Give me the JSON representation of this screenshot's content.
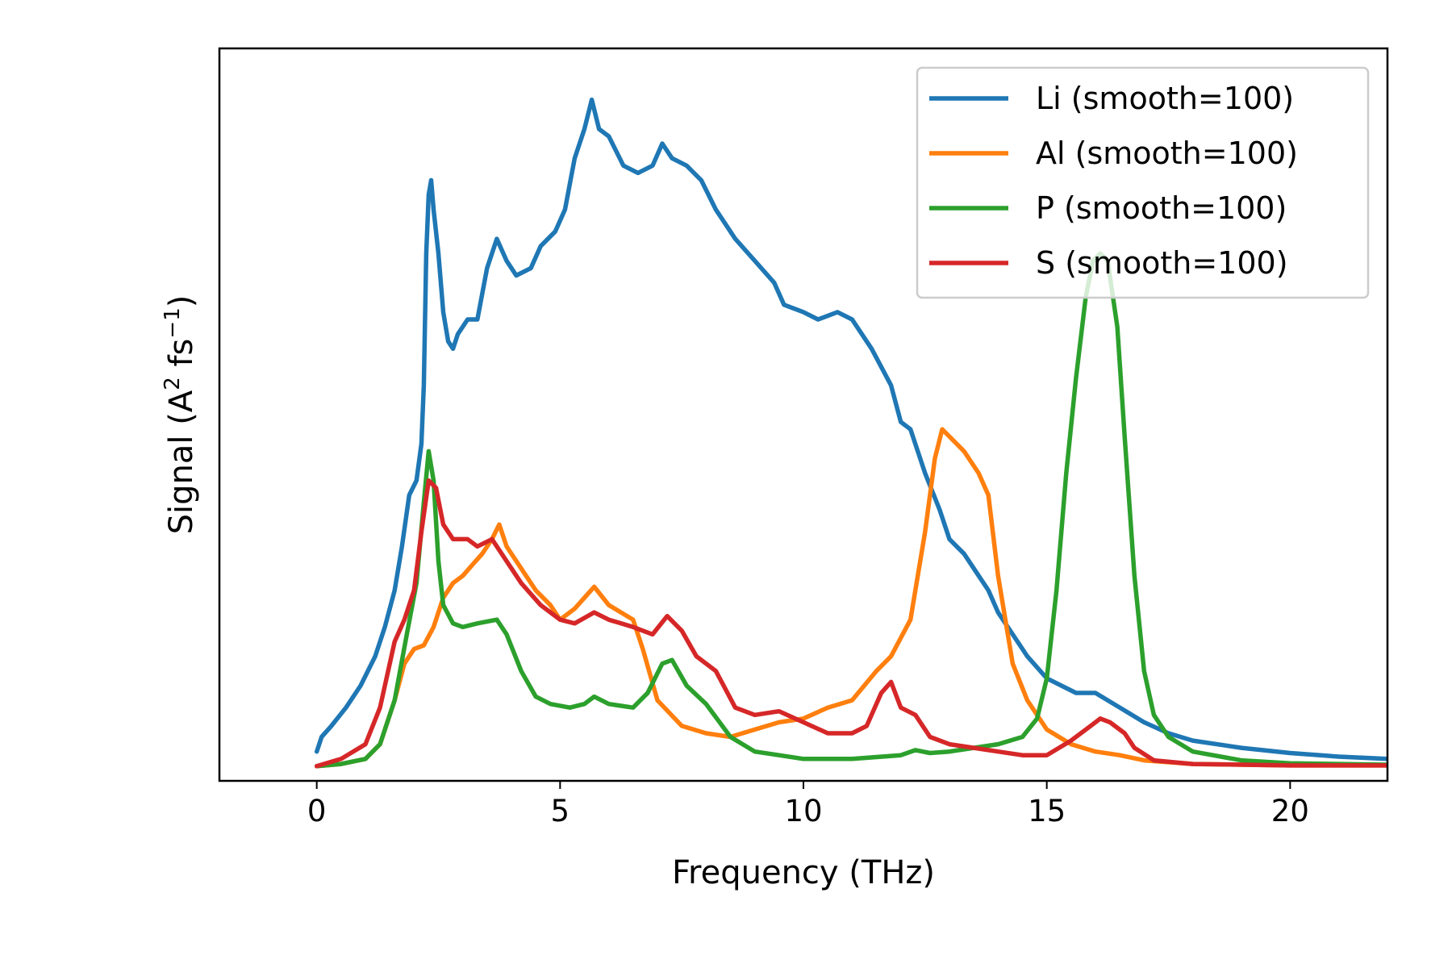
{
  "chart_data": {
    "type": "line",
    "xlabel": "Frequency (THz)",
    "ylabel_parts": {
      "base": "Signal (A",
      "sup1": "2",
      "mid": " fs",
      "sup2": "−1",
      "end": ")"
    },
    "xlim": [
      -2,
      22
    ],
    "ylim": [
      -0.02,
      0.98
    ],
    "xticks": [
      0,
      5,
      10,
      15,
      20
    ],
    "yticks_shown": false,
    "grid": false,
    "legend_position": "top-right",
    "series": [
      {
        "name": "Li (smooth=100)",
        "color": "#1f77b4",
        "points": [
          [
            0,
            0.02
          ],
          [
            0.1,
            0.04
          ],
          [
            0.3,
            0.055
          ],
          [
            0.6,
            0.08
          ],
          [
            0.9,
            0.11
          ],
          [
            1.2,
            0.15
          ],
          [
            1.4,
            0.19
          ],
          [
            1.6,
            0.24
          ],
          [
            1.75,
            0.3
          ],
          [
            1.9,
            0.37
          ],
          [
            2.05,
            0.39
          ],
          [
            2.15,
            0.44
          ],
          [
            2.2,
            0.52
          ],
          [
            2.25,
            0.7
          ],
          [
            2.3,
            0.78
          ],
          [
            2.35,
            0.8
          ],
          [
            2.4,
            0.76
          ],
          [
            2.5,
            0.7
          ],
          [
            2.6,
            0.62
          ],
          [
            2.7,
            0.58
          ],
          [
            2.8,
            0.57
          ],
          [
            2.9,
            0.59
          ],
          [
            3.1,
            0.61
          ],
          [
            3.3,
            0.61
          ],
          [
            3.5,
            0.68
          ],
          [
            3.7,
            0.72
          ],
          [
            3.9,
            0.69
          ],
          [
            4.1,
            0.67
          ],
          [
            4.4,
            0.68
          ],
          [
            4.6,
            0.71
          ],
          [
            4.9,
            0.73
          ],
          [
            5.1,
            0.76
          ],
          [
            5.3,
            0.83
          ],
          [
            5.5,
            0.87
          ],
          [
            5.65,
            0.91
          ],
          [
            5.8,
            0.87
          ],
          [
            6.0,
            0.86
          ],
          [
            6.3,
            0.82
          ],
          [
            6.6,
            0.81
          ],
          [
            6.9,
            0.82
          ],
          [
            7.1,
            0.85
          ],
          [
            7.3,
            0.83
          ],
          [
            7.6,
            0.82
          ],
          [
            7.9,
            0.8
          ],
          [
            8.2,
            0.76
          ],
          [
            8.6,
            0.72
          ],
          [
            9.0,
            0.69
          ],
          [
            9.4,
            0.66
          ],
          [
            9.6,
            0.63
          ],
          [
            10.0,
            0.62
          ],
          [
            10.3,
            0.61
          ],
          [
            10.7,
            0.62
          ],
          [
            11.0,
            0.61
          ],
          [
            11.4,
            0.57
          ],
          [
            11.8,
            0.52
          ],
          [
            12.0,
            0.47
          ],
          [
            12.2,
            0.46
          ],
          [
            12.5,
            0.4
          ],
          [
            12.8,
            0.35
          ],
          [
            13.0,
            0.31
          ],
          [
            13.3,
            0.29
          ],
          [
            13.5,
            0.27
          ],
          [
            13.8,
            0.24
          ],
          [
            14.0,
            0.21
          ],
          [
            14.3,
            0.18
          ],
          [
            14.6,
            0.15
          ],
          [
            15.0,
            0.12
          ],
          [
            15.3,
            0.11
          ],
          [
            15.6,
            0.1
          ],
          [
            16.0,
            0.1
          ],
          [
            16.5,
            0.08
          ],
          [
            17.0,
            0.06
          ],
          [
            17.5,
            0.045
          ],
          [
            18.0,
            0.035
          ],
          [
            19.0,
            0.025
          ],
          [
            20.0,
            0.018
          ],
          [
            21.0,
            0.013
          ],
          [
            22.0,
            0.01
          ]
        ]
      },
      {
        "name": "Al (smooth=100)",
        "color": "#ff7f0e",
        "points": [
          [
            0,
            0.0
          ],
          [
            0.5,
            0.003
          ],
          [
            1.0,
            0.01
          ],
          [
            1.3,
            0.03
          ],
          [
            1.6,
            0.09
          ],
          [
            1.8,
            0.14
          ],
          [
            2.0,
            0.16
          ],
          [
            2.2,
            0.165
          ],
          [
            2.4,
            0.19
          ],
          [
            2.6,
            0.23
          ],
          [
            2.8,
            0.25
          ],
          [
            3.0,
            0.26
          ],
          [
            3.2,
            0.275
          ],
          [
            3.4,
            0.29
          ],
          [
            3.6,
            0.31
          ],
          [
            3.75,
            0.33
          ],
          [
            3.9,
            0.3
          ],
          [
            4.2,
            0.27
          ],
          [
            4.5,
            0.24
          ],
          [
            4.8,
            0.22
          ],
          [
            5.0,
            0.2
          ],
          [
            5.3,
            0.215
          ],
          [
            5.5,
            0.23
          ],
          [
            5.7,
            0.245
          ],
          [
            6.0,
            0.22
          ],
          [
            6.5,
            0.2
          ],
          [
            6.7,
            0.16
          ],
          [
            7.0,
            0.09
          ],
          [
            7.5,
            0.055
          ],
          [
            8.0,
            0.045
          ],
          [
            8.5,
            0.04
          ],
          [
            9.0,
            0.05
          ],
          [
            9.5,
            0.06
          ],
          [
            10.0,
            0.065
          ],
          [
            10.5,
            0.08
          ],
          [
            11.0,
            0.09
          ],
          [
            11.5,
            0.13
          ],
          [
            11.8,
            0.15
          ],
          [
            12.2,
            0.2
          ],
          [
            12.5,
            0.32
          ],
          [
            12.7,
            0.42
          ],
          [
            12.85,
            0.46
          ],
          [
            13.0,
            0.45
          ],
          [
            13.3,
            0.43
          ],
          [
            13.6,
            0.4
          ],
          [
            13.8,
            0.37
          ],
          [
            14.0,
            0.26
          ],
          [
            14.3,
            0.14
          ],
          [
            14.6,
            0.09
          ],
          [
            15.0,
            0.05
          ],
          [
            15.5,
            0.03
          ],
          [
            16.0,
            0.02
          ],
          [
            16.5,
            0.015
          ],
          [
            17.0,
            0.008
          ],
          [
            18.0,
            0.003
          ],
          [
            20.0,
            0.001
          ],
          [
            22.0,
            0.001
          ]
        ]
      },
      {
        "name": "P (smooth=100)",
        "color": "#2ca02c",
        "points": [
          [
            0,
            0.0
          ],
          [
            0.5,
            0.003
          ],
          [
            1.0,
            0.01
          ],
          [
            1.3,
            0.03
          ],
          [
            1.6,
            0.09
          ],
          [
            1.85,
            0.18
          ],
          [
            2.05,
            0.25
          ],
          [
            2.2,
            0.36
          ],
          [
            2.3,
            0.43
          ],
          [
            2.4,
            0.39
          ],
          [
            2.5,
            0.28
          ],
          [
            2.6,
            0.22
          ],
          [
            2.8,
            0.195
          ],
          [
            3.0,
            0.19
          ],
          [
            3.3,
            0.195
          ],
          [
            3.7,
            0.2
          ],
          [
            3.9,
            0.18
          ],
          [
            4.2,
            0.13
          ],
          [
            4.5,
            0.095
          ],
          [
            4.8,
            0.085
          ],
          [
            5.2,
            0.08
          ],
          [
            5.5,
            0.085
          ],
          [
            5.7,
            0.095
          ],
          [
            6.0,
            0.085
          ],
          [
            6.5,
            0.08
          ],
          [
            6.8,
            0.1
          ],
          [
            7.1,
            0.14
          ],
          [
            7.3,
            0.145
          ],
          [
            7.6,
            0.11
          ],
          [
            8.0,
            0.085
          ],
          [
            8.5,
            0.04
          ],
          [
            9.0,
            0.02
          ],
          [
            9.5,
            0.015
          ],
          [
            10.0,
            0.01
          ],
          [
            11.0,
            0.01
          ],
          [
            12.0,
            0.015
          ],
          [
            12.3,
            0.022
          ],
          [
            12.6,
            0.018
          ],
          [
            13.0,
            0.02
          ],
          [
            13.5,
            0.025
          ],
          [
            14.0,
            0.03
          ],
          [
            14.5,
            0.04
          ],
          [
            14.8,
            0.065
          ],
          [
            15.0,
            0.12
          ],
          [
            15.2,
            0.24
          ],
          [
            15.4,
            0.4
          ],
          [
            15.6,
            0.53
          ],
          [
            15.8,
            0.64
          ],
          [
            15.95,
            0.69
          ],
          [
            16.1,
            0.7
          ],
          [
            16.25,
            0.69
          ],
          [
            16.45,
            0.6
          ],
          [
            16.6,
            0.45
          ],
          [
            16.8,
            0.26
          ],
          [
            17.0,
            0.13
          ],
          [
            17.2,
            0.07
          ],
          [
            17.5,
            0.04
          ],
          [
            18.0,
            0.02
          ],
          [
            19.0,
            0.008
          ],
          [
            20.0,
            0.004
          ],
          [
            22.0,
            0.002
          ]
        ]
      },
      {
        "name": "S (smooth=100)",
        "color": "#d62728",
        "points": [
          [
            0,
            0.0
          ],
          [
            0.5,
            0.01
          ],
          [
            1.0,
            0.03
          ],
          [
            1.3,
            0.08
          ],
          [
            1.6,
            0.17
          ],
          [
            1.8,
            0.2
          ],
          [
            2.0,
            0.24
          ],
          [
            2.15,
            0.32
          ],
          [
            2.3,
            0.39
          ],
          [
            2.45,
            0.38
          ],
          [
            2.6,
            0.33
          ],
          [
            2.8,
            0.31
          ],
          [
            3.1,
            0.31
          ],
          [
            3.3,
            0.3
          ],
          [
            3.6,
            0.31
          ],
          [
            3.9,
            0.28
          ],
          [
            4.2,
            0.25
          ],
          [
            4.6,
            0.22
          ],
          [
            5.0,
            0.2
          ],
          [
            5.3,
            0.195
          ],
          [
            5.7,
            0.21
          ],
          [
            6.0,
            0.2
          ],
          [
            6.5,
            0.19
          ],
          [
            6.9,
            0.18
          ],
          [
            7.2,
            0.205
          ],
          [
            7.5,
            0.185
          ],
          [
            7.8,
            0.15
          ],
          [
            8.2,
            0.13
          ],
          [
            8.6,
            0.08
          ],
          [
            9.0,
            0.07
          ],
          [
            9.5,
            0.075
          ],
          [
            10.0,
            0.06
          ],
          [
            10.5,
            0.045
          ],
          [
            11.0,
            0.045
          ],
          [
            11.3,
            0.055
          ],
          [
            11.6,
            0.1
          ],
          [
            11.8,
            0.115
          ],
          [
            12.0,
            0.08
          ],
          [
            12.3,
            0.07
          ],
          [
            12.6,
            0.04
          ],
          [
            13.0,
            0.03
          ],
          [
            13.5,
            0.025
          ],
          [
            14.0,
            0.02
          ],
          [
            14.5,
            0.015
          ],
          [
            15.0,
            0.015
          ],
          [
            15.5,
            0.035
          ],
          [
            15.9,
            0.055
          ],
          [
            16.1,
            0.065
          ],
          [
            16.3,
            0.06
          ],
          [
            16.6,
            0.045
          ],
          [
            16.8,
            0.025
          ],
          [
            17.2,
            0.008
          ],
          [
            18.0,
            0.003
          ],
          [
            20.0,
            0.001
          ],
          [
            22.0,
            0.001
          ]
        ]
      }
    ]
  }
}
